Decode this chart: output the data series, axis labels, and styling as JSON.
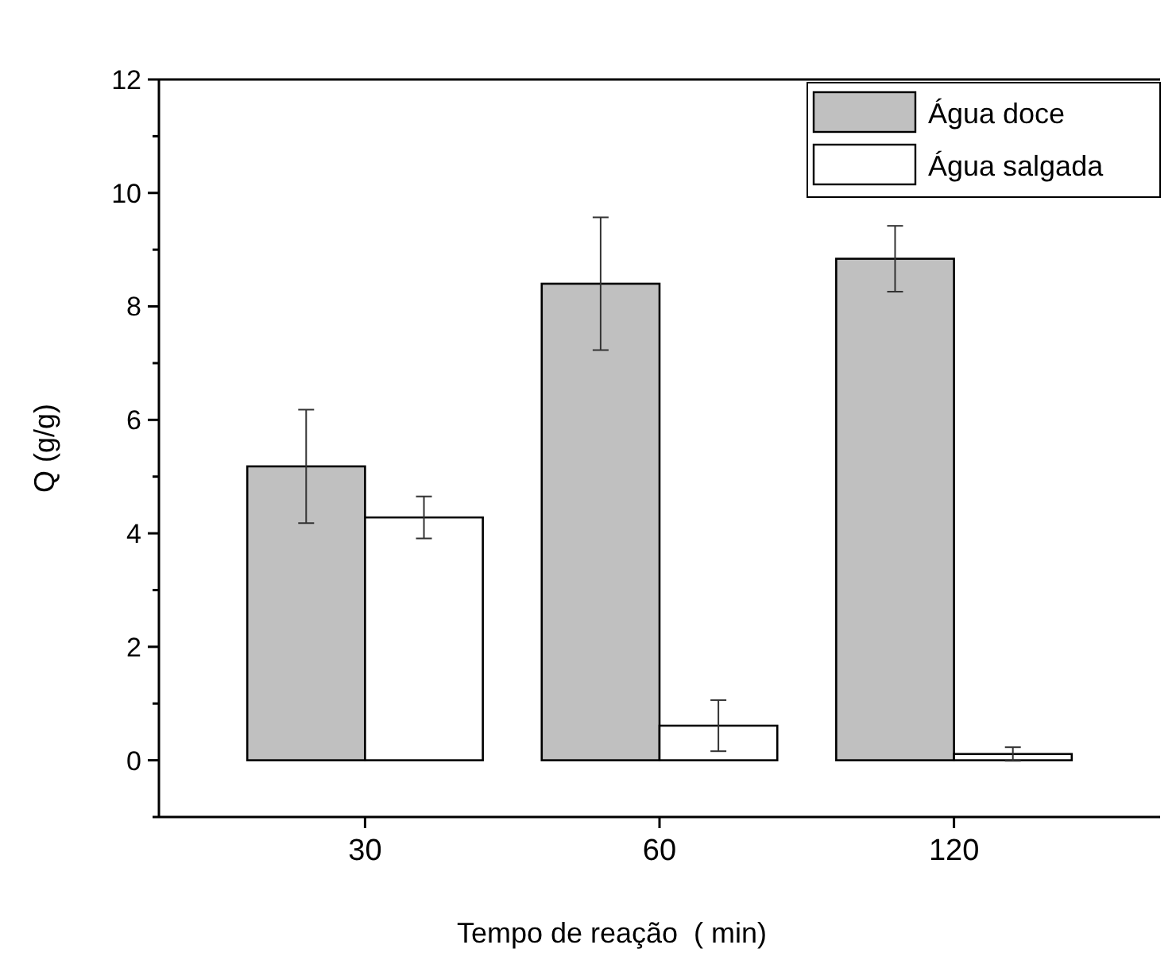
{
  "chart_data": {
    "type": "bar",
    "xlabel": "Tempo de reação  ( min)",
    "ylabel": "Q (g/g)",
    "categories": [
      "30",
      "60",
      "120"
    ],
    "series": [
      {
        "name": "Água doce",
        "color": "#c0c0c0",
        "values": [
          5.18,
          8.4,
          8.84
        ],
        "errors": [
          1.0,
          1.17,
          0.58
        ]
      },
      {
        "name": "Água salgada",
        "color": "#ffffff",
        "values": [
          4.28,
          0.61,
          0.11
        ],
        "errors": [
          0.37,
          0.45,
          0.12
        ]
      }
    ],
    "ylim": [
      -1,
      12
    ],
    "yticks": [
      {
        "value": -1,
        "label": null
      },
      0,
      {
        "value": 1,
        "label": null
      },
      2,
      {
        "value": 3,
        "label": null
      },
      4,
      {
        "value": 5,
        "label": null
      },
      6,
      {
        "value": 7,
        "label": null
      },
      8,
      {
        "value": 9,
        "label": null
      },
      10,
      {
        "value": 11,
        "label": null
      },
      12
    ],
    "legend": "top right",
    "grid": false
  }
}
